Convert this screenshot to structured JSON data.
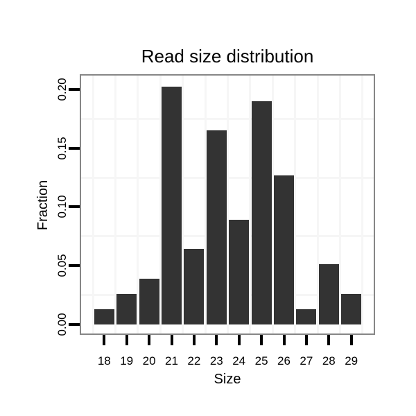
{
  "chart_data": {
    "type": "bar",
    "title": "Read size distribution",
    "xlabel": "Size",
    "ylabel": "Fraction",
    "categories": [
      "18",
      "19",
      "20",
      "21",
      "22",
      "23",
      "24",
      "25",
      "26",
      "27",
      "28",
      "29"
    ],
    "values": [
      0.013,
      0.026,
      0.039,
      0.202,
      0.064,
      0.165,
      0.089,
      0.19,
      0.127,
      0.013,
      0.051,
      0.026
    ],
    "ytick_labels": [
      "0.00",
      "0.05",
      "0.10",
      "0.15",
      "0.20"
    ],
    "ytick_values": [
      0.0,
      0.05,
      0.1,
      0.15,
      0.2
    ],
    "minor_gridline_values": [
      0.025,
      0.075,
      0.125,
      0.175
    ],
    "ylim": [
      -0.0077,
      0.2117
    ],
    "grid": "very light gray; horizontal lines at minor breaks, vertical lines between categories",
    "legend_position": "none",
    "colors": {
      "bar": "#333333",
      "gridline": "#f6f6f6",
      "panel_border": "#868686",
      "tick": "#000000",
      "text": "#000000",
      "panel_background": "#ffffff",
      "page_background": "#ffffff"
    }
  }
}
